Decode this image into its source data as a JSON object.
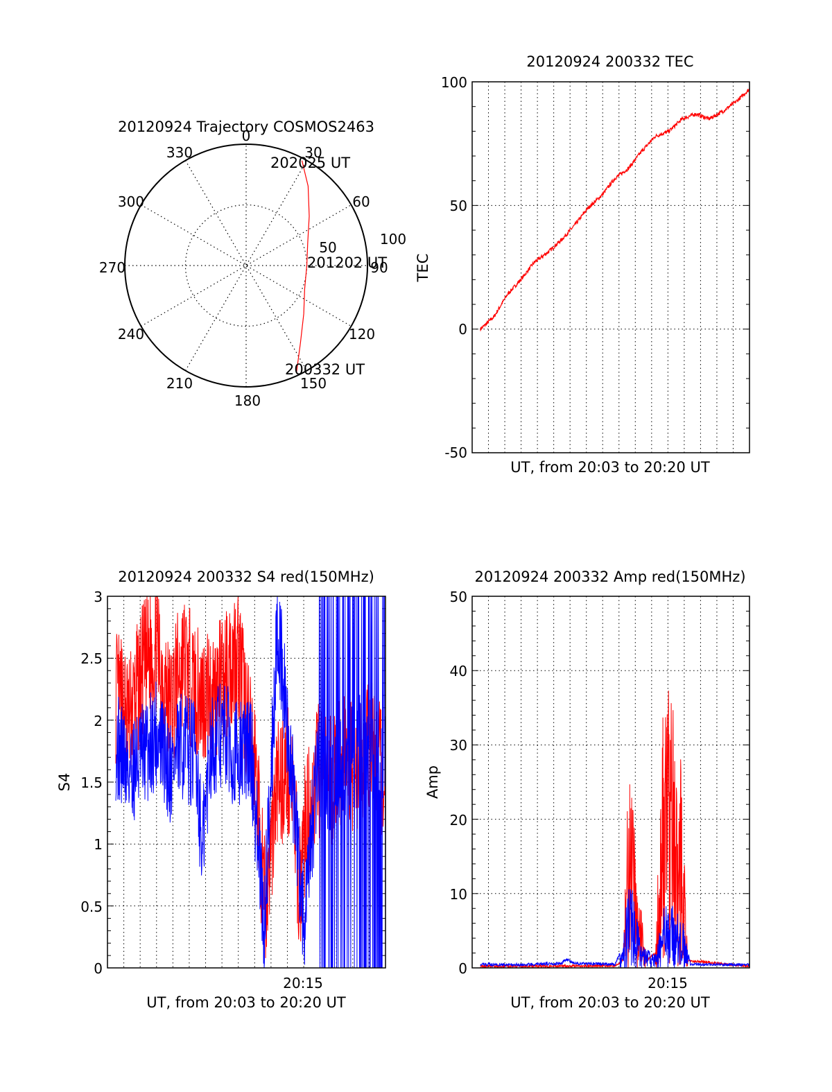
{
  "colors": {
    "red": "#ff0000",
    "blue": "#0000ff",
    "axis": "#000000",
    "grid": "#000000"
  },
  "chart_data": [
    {
      "id": "polar",
      "type": "scatter",
      "subtype": "polar-trajectory",
      "title": "20120924 Trajectory COSMOS2463",
      "angle_labels": [
        "0",
        "30",
        "60",
        "90",
        "120",
        "150",
        "180",
        "210",
        "240",
        "270",
        "300",
        "330"
      ],
      "radial_labels": [
        "50",
        "100"
      ],
      "rlim": [
        0,
        100
      ],
      "annotations": {
        "start": "200332 UT",
        "mid": "201202 UT",
        "end": "202025 UT"
      },
      "trajectory": {
        "azimuth_deg": [
          155,
          145,
          130,
          112,
          90,
          70,
          52,
          38,
          28
        ],
        "zenith_angle": [
          98,
          78,
          62,
          52,
          50,
          54,
          66,
          83,
          98
        ]
      },
      "grid": true
    },
    {
      "id": "tec",
      "type": "line",
      "title": "20120924 200332 TEC",
      "xlabel": "UT, from 20:03 to 20:20 UT",
      "ylabel": "TEC",
      "ylim": [
        -50,
        100
      ],
      "yticks": [
        "-50",
        "0",
        "50",
        "100"
      ],
      "grid": true,
      "series": [
        {
          "color": "#ff0000",
          "x_frac": [
            0,
            0.05,
            0.1,
            0.15,
            0.2,
            0.25,
            0.3,
            0.35,
            0.4,
            0.45,
            0.5,
            0.55,
            0.6,
            0.65,
            0.7,
            0.75,
            0.8,
            0.85,
            0.9,
            0.95,
            1.0
          ],
          "values": [
            0,
            5,
            14,
            20,
            27,
            31,
            36,
            42,
            49,
            54,
            61,
            65,
            72,
            78,
            80,
            85,
            87,
            85,
            88,
            92,
            97
          ]
        }
      ]
    },
    {
      "id": "s4",
      "type": "line",
      "title": "20120924 200332 S4 red(150MHz)",
      "xlabel": "UT, from 20:03 to 20:20 UT",
      "xtick_label": "20:15",
      "ylabel": "S4",
      "ylim": [
        0,
        3
      ],
      "yticks": [
        "0",
        "0.5",
        "1",
        "1.5",
        "2",
        "2.5",
        "3"
      ],
      "grid": true,
      "series": [
        {
          "color": "#ff0000",
          "x_frac": [
            0,
            0.05,
            0.1,
            0.15,
            0.2,
            0.25,
            0.3,
            0.35,
            0.4,
            0.45,
            0.5,
            0.52,
            0.55,
            0.6,
            0.65,
            0.68,
            0.7,
            0.75,
            0.8,
            0.85,
            0.9,
            0.95,
            1.0
          ],
          "values": [
            2.2,
            2.0,
            2.4,
            2.6,
            2.1,
            2.5,
            2.2,
            2.2,
            2.3,
            2.6,
            1.8,
            1.6,
            0.5,
            1.5,
            1.6,
            0.6,
            1.1,
            1.6,
            1.5,
            1.7,
            1.6,
            1.8,
            1.5
          ]
        },
        {
          "color": "#0000ff",
          "x_frac": [
            0,
            0.05,
            0.1,
            0.15,
            0.2,
            0.25,
            0.3,
            0.32,
            0.35,
            0.4,
            0.45,
            0.5,
            0.52,
            0.55,
            0.6,
            0.65,
            0.7,
            0.75,
            0.8,
            0.85,
            0.9,
            0.95,
            1.0
          ],
          "values": [
            1.8,
            1.6,
            1.7,
            1.9,
            1.6,
            1.8,
            1.7,
            0.9,
            1.8,
            1.9,
            1.7,
            1.8,
            1.2,
            0.3,
            2.8,
            1.6,
            0.3,
            1.7,
            1.5,
            1.6,
            1.8,
            1.7,
            1.6
          ]
        }
      ]
    },
    {
      "id": "amp",
      "type": "line",
      "title": "20120924 200332 Amp red(150MHz)",
      "xlabel": "UT, from 20:03 to 20:20 UT",
      "xtick_label": "20:15",
      "ylabel": "Amp",
      "ylim": [
        0,
        50
      ],
      "yticks": [
        "0",
        "10",
        "20",
        "30",
        "40",
        "50"
      ],
      "grid": true,
      "series": [
        {
          "color": "#ff0000",
          "x_frac": [
            0,
            0.5,
            0.53,
            0.55,
            0.57,
            0.59,
            0.62,
            0.65,
            0.68,
            0.7,
            0.72,
            0.75,
            0.77,
            1.0
          ],
          "values": [
            0.2,
            0.3,
            1,
            28,
            20,
            10,
            1,
            2,
            38,
            40,
            41,
            25,
            1,
            0.2
          ]
        },
        {
          "color": "#0000ff",
          "x_frac": [
            0,
            0.1,
            0.2,
            0.3,
            0.32,
            0.35,
            0.5,
            0.53,
            0.55,
            0.57,
            0.6,
            0.65,
            0.68,
            0.7,
            0.72,
            0.75,
            0.78,
            1.0
          ],
          "values": [
            0.5,
            0.4,
            0.5,
            0.6,
            1.2,
            0.6,
            0.5,
            3,
            12,
            10,
            3,
            2,
            8,
            9,
            8,
            7,
            0.5,
            0.4
          ]
        }
      ]
    }
  ]
}
